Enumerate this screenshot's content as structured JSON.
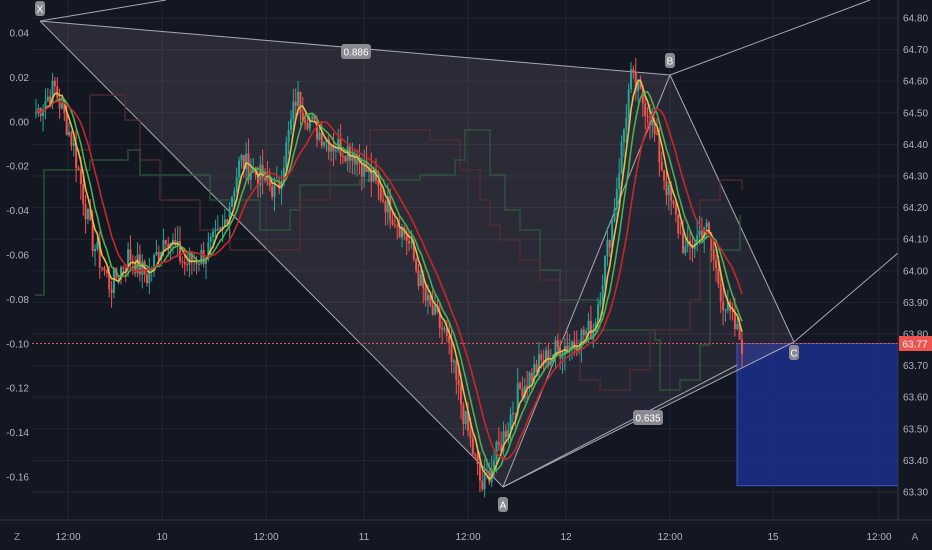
{
  "chart_data": {
    "type": "candlestick",
    "title": "",
    "left_axis": {
      "ticks": [
        "0.04",
        "0.02",
        "0.00",
        "-0.02",
        "-0.04",
        "-0.06",
        "-0.08",
        "-0.10",
        "-0.12",
        "-0.14",
        "-0.16"
      ],
      "ylim": [
        -0.175,
        0.05
      ]
    },
    "right_axis": {
      "ticks": [
        "64.80",
        "64.70",
        "64.60",
        "64.50",
        "64.40",
        "64.30",
        "64.20",
        "64.10",
        "64.00",
        "63.90",
        "63.80",
        "63.70",
        "63.60",
        "63.50",
        "63.40",
        "63.30"
      ],
      "ylim": [
        63.25,
        64.83
      ],
      "last_price": "63.77"
    },
    "x_axis": {
      "ticks": [
        "12:00",
        "10",
        "12:00",
        "11",
        "12:00",
        "12",
        "12:00",
        "15",
        "12:00"
      ]
    },
    "pattern": {
      "points": [
        {
          "label": "X",
          "price": 64.72
        },
        {
          "label": "A",
          "price": 63.31
        },
        {
          "label": "B",
          "price": 64.61
        },
        {
          "label": "C",
          "price": 63.78
        }
      ],
      "ratios": [
        "0.886",
        "0.635"
      ]
    },
    "target_zone": {
      "price_from": 63.77,
      "price_to": 63.32
    },
    "candles_close_path": [
      64.5,
      64.58,
      64.4,
      64.1,
      63.95,
      64.05,
      63.98,
      64.12,
      64.02,
      64.05,
      64.12,
      64.35,
      64.3,
      64.25,
      64.55,
      64.45,
      64.4,
      64.38,
      64.3,
      64.2,
      64.1,
      63.9,
      63.8,
      63.55,
      63.31,
      63.45,
      63.62,
      63.7,
      63.75,
      63.78,
      63.82,
      64.15,
      64.61,
      64.5,
      64.25,
      64.05,
      64.15,
      63.9,
      63.77
    ]
  },
  "corner_labels": {
    "bottom_left": "Z",
    "bottom_right": "A"
  },
  "colors": {
    "background": "#131722",
    "grid": "#2a2e39",
    "up": "#26a69a",
    "down": "#ef5350",
    "pattern_fill": "#6b6070",
    "zone_fill": "#1d2f8c",
    "price_line": "#ef5350"
  }
}
